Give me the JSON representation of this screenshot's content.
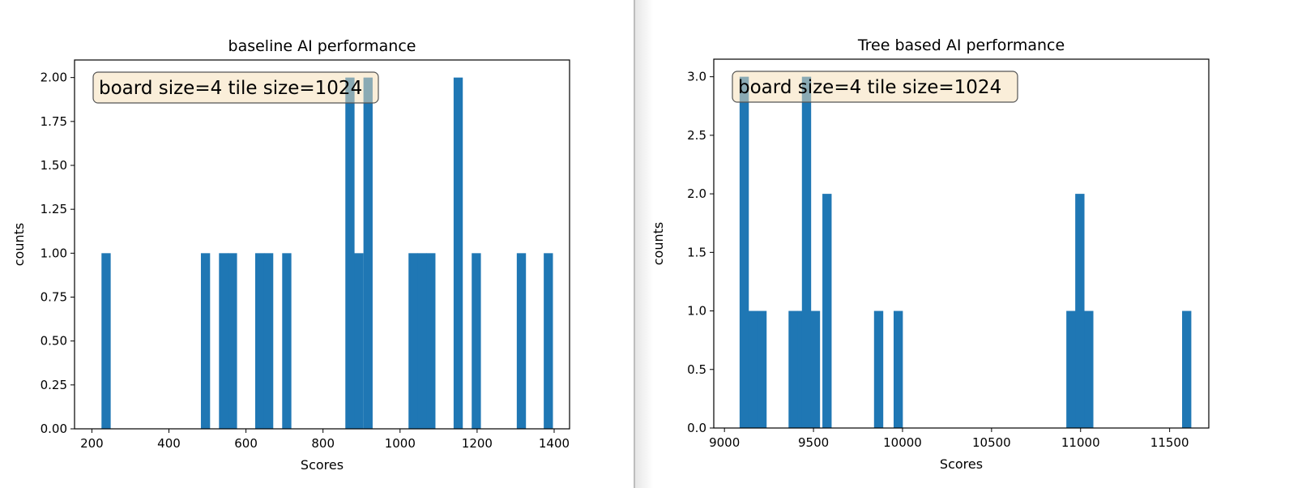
{
  "chart_data": [
    {
      "type": "bar",
      "title": "baseline AI performance",
      "xlabel": "Scores",
      "ylabel": "counts",
      "xlim": [
        155,
        1440
      ],
      "ylim": [
        0,
        2.1
      ],
      "xticks": [
        200,
        400,
        600,
        800,
        1000,
        1200,
        1400
      ],
      "yticks": [
        0.0,
        0.25,
        0.5,
        0.75,
        1.0,
        1.25,
        1.5,
        1.75,
        2.0
      ],
      "xtick_labels": [
        "200",
        "400",
        "600",
        "800",
        "1000",
        "1200",
        "1400"
      ],
      "ytick_labels": [
        "0.00",
        "0.25",
        "0.50",
        "0.75",
        "1.00",
        "1.25",
        "1.50",
        "1.75",
        "2.00"
      ],
      "bin_width": 23,
      "bins": [
        {
          "x": 225,
          "count": 1
        },
        {
          "x": 483,
          "count": 1
        },
        {
          "x": 530,
          "count": 1
        },
        {
          "x": 553,
          "count": 1
        },
        {
          "x": 624,
          "count": 1
        },
        {
          "x": 647,
          "count": 1
        },
        {
          "x": 694,
          "count": 1
        },
        {
          "x": 858,
          "count": 2
        },
        {
          "x": 881,
          "count": 1
        },
        {
          "x": 905,
          "count": 2
        },
        {
          "x": 1022,
          "count": 1
        },
        {
          "x": 1045,
          "count": 1
        },
        {
          "x": 1068,
          "count": 1
        },
        {
          "x": 1139,
          "count": 2
        },
        {
          "x": 1186,
          "count": 1
        },
        {
          "x": 1303,
          "count": 1
        },
        {
          "x": 1373,
          "count": 1
        }
      ],
      "annotation": "board size=4 tile size=1024",
      "grid": false,
      "color": "#1f77b4"
    },
    {
      "type": "bar",
      "title": "Tree based AI performance",
      "xlabel": "Scores",
      "ylabel": "counts",
      "xlim": [
        8940,
        11720
      ],
      "ylim": [
        0,
        3.15
      ],
      "xticks": [
        9000,
        9500,
        10000,
        10500,
        11000,
        11500
      ],
      "yticks": [
        0.0,
        0.5,
        1.0,
        1.5,
        2.0,
        2.5,
        3.0
      ],
      "xtick_labels": [
        "9000",
        "9500",
        "10000",
        "10500",
        "11000",
        "11500"
      ],
      "ytick_labels": [
        "0.0",
        "0.5",
        "1.0",
        "1.5",
        "2.0",
        "2.5",
        "3.0"
      ],
      "bin_width": 50,
      "bins": [
        {
          "x": 9085,
          "count": 3
        },
        {
          "x": 9135,
          "count": 1
        },
        {
          "x": 9185,
          "count": 1
        },
        {
          "x": 9360,
          "count": 1
        },
        {
          "x": 9410,
          "count": 1
        },
        {
          "x": 9435,
          "count": 3
        },
        {
          "x": 9485,
          "count": 1
        },
        {
          "x": 9550,
          "count": 2
        },
        {
          "x": 9840,
          "count": 1
        },
        {
          "x": 9950,
          "count": 1
        },
        {
          "x": 10920,
          "count": 1
        },
        {
          "x": 10970,
          "count": 2
        },
        {
          "x": 11020,
          "count": 1
        },
        {
          "x": 11570,
          "count": 1
        }
      ],
      "annotation": "board size=4 tile size=1024",
      "grid": false,
      "color": "#1f77b4"
    }
  ],
  "style": {
    "bar_color": "#1f77b4",
    "annotation_bg": "#f5deb3",
    "annotation_border": "#555555"
  }
}
